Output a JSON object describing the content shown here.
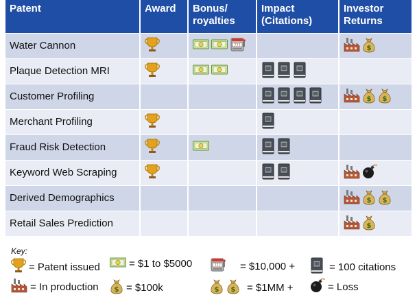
{
  "headers": [
    "Patent",
    "Award",
    "Bonus/\nroyalties",
    "Impact\n(Citations)",
    "Investor\nReturns"
  ],
  "rows": [
    {
      "patent": "Water Cannon",
      "award": 1,
      "bonus": [
        "cash",
        "cash",
        "slot"
      ],
      "citations": 0,
      "returns": [
        "factory",
        "moneybag"
      ]
    },
    {
      "patent": "Plaque Detection MRI",
      "award": 1,
      "bonus": [
        "cash",
        "cash"
      ],
      "citations": 3,
      "returns": []
    },
    {
      "patent": "Customer Profiling",
      "award": 0,
      "bonus": [],
      "citations": 4,
      "returns": [
        "factory",
        "moneybag",
        "moneybag"
      ]
    },
    {
      "patent": "Merchant Profiling",
      "award": 1,
      "bonus": [],
      "citations": 1,
      "returns": []
    },
    {
      "patent": "Fraud Risk Detection",
      "award": 1,
      "bonus": [
        "cash"
      ],
      "citations": 2,
      "returns": []
    },
    {
      "patent": "Keyword Web Scraping",
      "award": 1,
      "bonus": [],
      "citations": 2,
      "returns": [
        "factory",
        "bomb"
      ]
    },
    {
      "patent": "Derived Demographics",
      "award": 0,
      "bonus": [],
      "citations": 0,
      "returns": [
        "factory",
        "moneybag",
        "moneybag"
      ]
    },
    {
      "patent": "Retail Sales Prediction",
      "award": 0,
      "bonus": [],
      "citations": 0,
      "returns": [
        "factory",
        "moneybag"
      ]
    }
  ],
  "key": {
    "title": "Key:",
    "items": [
      {
        "icons": [
          "trophy"
        ],
        "text": "= Patent issued"
      },
      {
        "icons": [
          "cash"
        ],
        "text": "= $1 to $5000"
      },
      {
        "icons": [
          "slot"
        ],
        "text": "= $10,000 +"
      },
      {
        "icons": [
          "book"
        ],
        "text": "= 100 citations"
      },
      {
        "icons": [
          "factory"
        ],
        "text": "= In production"
      },
      {
        "icons": [
          "moneybag"
        ],
        "text": "= $100k"
      },
      {
        "icons": [
          "moneybag",
          "moneybag"
        ],
        "text": "= $1MM +"
      },
      {
        "icons": [
          "bomb"
        ],
        "text": "= Loss"
      }
    ]
  },
  "colors": {
    "header_bg": "#1f4ea6",
    "row_dark": "#cfd6e8",
    "row_light": "#e9ecf4"
  }
}
